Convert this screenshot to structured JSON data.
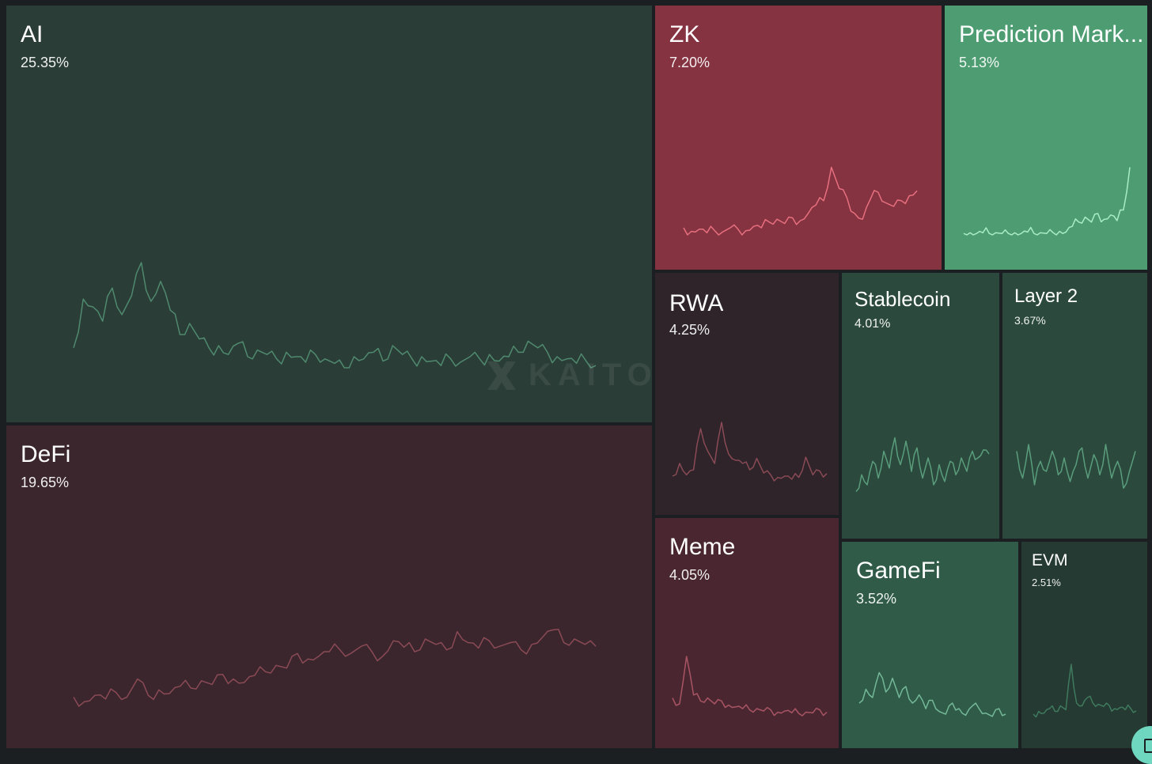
{
  "chart_data": {
    "type": "treemap",
    "title": "",
    "tiles": [
      {
        "name": "AI",
        "value": 25.35,
        "label": "25.35%",
        "color": "#2b3d37",
        "line_color": "#4f8a6f",
        "spark": [
          0.18,
          0.62,
          0.55,
          0.42,
          0.72,
          0.48,
          0.65,
          0.95,
          0.6,
          0.78,
          0.52,
          0.3,
          0.4,
          0.26,
          0.18,
          0.2,
          0.12,
          0.22,
          0.1,
          0.16,
          0.12,
          0.08,
          0.14,
          0.1,
          0.05,
          0.12,
          0.08,
          0.04,
          0.0,
          0.1,
          0.08,
          0.14,
          0.06,
          0.2,
          0.12,
          0.08,
          0.1,
          0.06,
          0.02,
          0.08,
          0.05,
          0.1,
          0.08,
          0.12,
          0.06,
          0.1,
          0.14,
          0.24,
          0.18,
          0.14,
          0.1,
          0.08,
          0.04,
          0.06,
          0.02
        ]
      },
      {
        "name": "DeFi",
        "value": 19.65,
        "label": "19.65%",
        "color": "#3b262d",
        "line_color": "#8a4a56",
        "spark": [
          0.1,
          0.05,
          0.12,
          0.08,
          0.15,
          0.1,
          0.3,
          0.12,
          0.18,
          0.14,
          0.22,
          0.2,
          0.28,
          0.24,
          0.35,
          0.3,
          0.26,
          0.34,
          0.38,
          0.45,
          0.42,
          0.58,
          0.52,
          0.55,
          0.6,
          0.62,
          0.58,
          0.66,
          0.6,
          0.55,
          0.72,
          0.65,
          0.6,
          0.74,
          0.68,
          0.62,
          0.82,
          0.7,
          0.64,
          0.72,
          0.66,
          0.7,
          0.62,
          0.68,
          0.76,
          0.84,
          0.7,
          0.74,
          0.68,
          0.66
        ]
      },
      {
        "name": "ZK",
        "value": 7.2,
        "label": "7.20%",
        "color": "#853241",
        "line_color": "#e7707f",
        "spark": [
          0.1,
          0.05,
          0.08,
          0.03,
          0.06,
          0.04,
          0.1,
          0.08,
          0.06,
          0.12,
          0.1,
          0.18,
          0.22,
          0.16,
          0.24,
          0.2,
          0.3,
          0.42,
          0.48,
          0.95,
          0.65,
          0.52,
          0.3,
          0.22,
          0.5,
          0.6,
          0.45,
          0.4,
          0.48,
          0.55,
          0.62
        ]
      },
      {
        "name": "Prediction Markets",
        "display_name": "Prediction Mark...",
        "value": 5.13,
        "label": "5.13%",
        "color": "#4e9d72",
        "line_color": "#a9ecc4",
        "spark": [
          0.02,
          0.03,
          0.02,
          0.03,
          0.02,
          0.03,
          0.02,
          0.02,
          0.03,
          0.02,
          0.04,
          0.02,
          0.03,
          0.02,
          0.03,
          0.05,
          0.04,
          0.12,
          0.18,
          0.25,
          0.18,
          0.3,
          0.22,
          0.28,
          0.2,
          0.35,
          0.95
        ]
      },
      {
        "name": "RWA",
        "value": 4.25,
        "label": "4.25%",
        "color": "#2e2429",
        "line_color": "#8a4a56",
        "spark": [
          0.1,
          0.3,
          0.12,
          0.2,
          0.85,
          0.5,
          0.3,
          0.95,
          0.45,
          0.35,
          0.3,
          0.2,
          0.38,
          0.15,
          0.12,
          0.08,
          0.1,
          0.05,
          0.08,
          0.4,
          0.12,
          0.18,
          0.14
        ]
      },
      {
        "name": "Stablecoin",
        "value": 4.01,
        "label": "4.01%",
        "color": "#2b4a3d",
        "line_color": "#5a9d7c",
        "spark": [
          0.1,
          0.35,
          0.2,
          0.55,
          0.3,
          0.7,
          0.45,
          0.9,
          0.5,
          0.85,
          0.4,
          0.75,
          0.3,
          0.6,
          0.2,
          0.5,
          0.25,
          0.55,
          0.35,
          0.6,
          0.4,
          0.7,
          0.6,
          0.72,
          0.66
        ]
      },
      {
        "name": "Layer 2",
        "value": 3.67,
        "label": "3.67%",
        "color": "#2b4a3d",
        "line_color": "#5a9d7c",
        "spark": [
          0.7,
          0.3,
          0.8,
          0.2,
          0.55,
          0.4,
          0.7,
          0.35,
          0.6,
          0.25,
          0.5,
          0.75,
          0.3,
          0.65,
          0.35,
          0.8,
          0.3,
          0.55,
          0.15,
          0.4,
          0.7
        ]
      },
      {
        "name": "Meme",
        "value": 4.05,
        "label": "4.05%",
        "color": "#4a2730",
        "line_color": "#a85464",
        "spark": [
          0.3,
          0.2,
          1.0,
          0.35,
          0.25,
          0.3,
          0.2,
          0.25,
          0.18,
          0.15,
          0.12,
          0.1,
          0.12,
          0.08,
          0.1,
          0.06,
          0.08,
          0.05,
          0.04,
          0.06,
          0.05,
          0.1,
          0.06
        ]
      },
      {
        "name": "GameFi",
        "value": 3.52,
        "label": "3.52%",
        "color": "#2f5b48",
        "line_color": "#74b897",
        "spark": [
          0.3,
          0.55,
          0.4,
          0.85,
          0.5,
          0.75,
          0.4,
          0.6,
          0.3,
          0.45,
          0.2,
          0.35,
          0.15,
          0.1,
          0.3,
          0.2,
          0.08,
          0.25,
          0.2,
          0.12,
          0.06,
          0.2,
          0.1
        ]
      },
      {
        "name": "EVM",
        "value": 2.51,
        "label": "2.51%",
        "color": "#253a32",
        "line_color": "#3f7a5f",
        "spark": [
          0.1,
          0.15,
          0.12,
          0.2,
          0.15,
          0.25,
          0.18,
          1.0,
          0.3,
          0.25,
          0.4,
          0.3,
          0.28,
          0.24,
          0.26,
          0.2,
          0.22,
          0.18,
          0.2,
          0.16
        ]
      }
    ]
  },
  "watermark": "KAITO"
}
